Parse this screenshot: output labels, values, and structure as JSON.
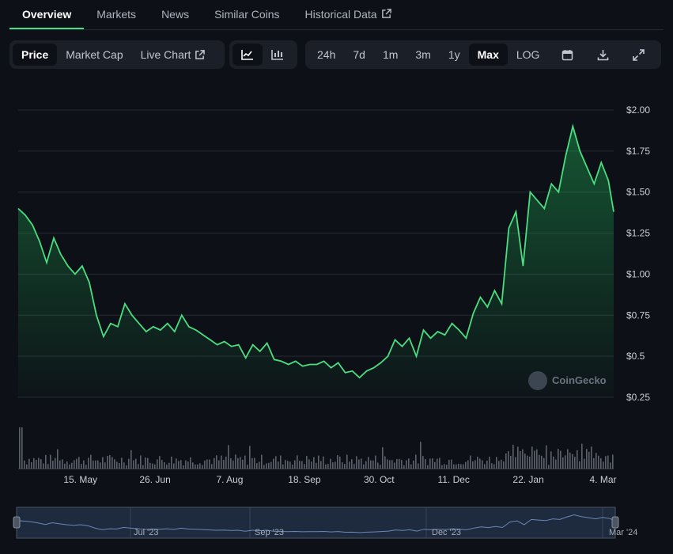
{
  "tabs": [
    {
      "label": "Overview",
      "active": true
    },
    {
      "label": "Markets"
    },
    {
      "label": "News"
    },
    {
      "label": "Similar Coins"
    },
    {
      "label": "Historical Data",
      "external": true
    }
  ],
  "metric_toggle": {
    "price": "Price",
    "market_cap": "Market Cap",
    "live_chart": "Live Chart"
  },
  "chart_style_icons": [
    "line-chart-icon",
    "candlestick-chart-icon"
  ],
  "ranges": [
    "24h",
    "7d",
    "1m",
    "3m",
    "1y",
    "Max",
    "LOG"
  ],
  "active_range": "Max",
  "tool_icons": [
    "calendar-icon",
    "download-icon",
    "fullscreen-icon"
  ],
  "colors": {
    "line": "#4ade80",
    "accent": "#4ade80",
    "background": "#0d1117"
  },
  "watermark": "CoinGecko",
  "chart_data": {
    "type": "area",
    "x_start": "2023-04-10",
    "x_end": "2024-03-10",
    "ylim": [
      0.25,
      2.0
    ],
    "yticks": [
      0.25,
      0.5,
      0.75,
      1.0,
      1.25,
      1.5,
      1.75,
      2.0
    ],
    "ytick_labels": [
      "$0.25",
      "$0.5",
      "$0.75",
      "$1.00",
      "$1.25",
      "$1.50",
      "$1.75",
      "$2.00"
    ],
    "xticks": [
      "2023-05-15",
      "2023-06-26",
      "2023-08-07",
      "2023-09-18",
      "2023-10-30",
      "2023-12-11",
      "2024-01-22",
      "2024-03-04"
    ],
    "xtick_labels": [
      "15. May",
      "26. Jun",
      "7. Aug",
      "18. Sep",
      "30. Oct",
      "11. Dec",
      "22. Jan",
      "4. Mar"
    ],
    "grid": true,
    "series": [
      {
        "x": [
          "2023-04-10",
          "2023-04-14",
          "2023-04-18",
          "2023-04-22",
          "2023-04-26",
          "2023-04-30",
          "2023-05-04",
          "2023-05-08",
          "2023-05-12",
          "2023-05-16",
          "2023-05-20",
          "2023-05-24",
          "2023-05-28",
          "2023-06-01",
          "2023-06-05",
          "2023-06-09",
          "2023-06-13",
          "2023-06-17",
          "2023-06-21",
          "2023-06-25",
          "2023-06-29",
          "2023-07-03",
          "2023-07-07",
          "2023-07-11",
          "2023-07-15",
          "2023-07-19",
          "2023-07-23",
          "2023-07-27",
          "2023-07-31",
          "2023-08-04",
          "2023-08-08",
          "2023-08-12",
          "2023-08-16",
          "2023-08-20",
          "2023-08-24",
          "2023-08-28",
          "2023-09-01",
          "2023-09-05",
          "2023-09-09",
          "2023-09-13",
          "2023-09-17",
          "2023-09-21",
          "2023-09-25",
          "2023-09-29",
          "2023-10-03",
          "2023-10-07",
          "2023-10-11",
          "2023-10-15",
          "2023-10-19",
          "2023-10-23",
          "2023-10-27",
          "2023-10-31",
          "2023-11-04",
          "2023-11-08",
          "2023-11-12",
          "2023-11-16",
          "2023-11-20",
          "2023-11-24",
          "2023-11-28",
          "2023-12-02",
          "2023-12-06",
          "2023-12-10",
          "2023-12-14",
          "2023-12-18",
          "2023-12-22",
          "2023-12-26",
          "2023-12-30",
          "2024-01-03",
          "2024-01-07",
          "2024-01-11",
          "2024-01-15",
          "2024-01-19",
          "2024-01-23",
          "2024-01-27",
          "2024-01-31",
          "2024-02-04",
          "2024-02-08",
          "2024-02-12",
          "2024-02-16",
          "2024-02-20",
          "2024-02-24",
          "2024-02-28",
          "2024-03-03",
          "2024-03-07",
          "2024-03-10"
        ],
        "y": [
          1.4,
          1.36,
          1.3,
          1.2,
          1.07,
          1.22,
          1.12,
          1.05,
          1.0,
          1.05,
          0.95,
          0.75,
          0.62,
          0.7,
          0.68,
          0.82,
          0.75,
          0.7,
          0.65,
          0.68,
          0.66,
          0.7,
          0.65,
          0.75,
          0.68,
          0.66,
          0.63,
          0.6,
          0.57,
          0.59,
          0.56,
          0.57,
          0.49,
          0.57,
          0.53,
          0.58,
          0.48,
          0.47,
          0.45,
          0.47,
          0.44,
          0.45,
          0.45,
          0.47,
          0.43,
          0.46,
          0.4,
          0.41,
          0.37,
          0.41,
          0.43,
          0.46,
          0.5,
          0.6,
          0.56,
          0.61,
          0.5,
          0.66,
          0.61,
          0.65,
          0.63,
          0.7,
          0.66,
          0.61,
          0.76,
          0.86,
          0.8,
          0.9,
          0.82,
          1.28,
          1.38,
          1.05,
          1.5,
          1.45,
          1.4,
          1.55,
          1.5,
          1.72,
          1.9,
          1.75,
          1.65,
          1.55,
          1.68,
          1.57,
          1.38
        ]
      }
    ],
    "navigator_labels": [
      "Jul '23",
      "Sep '23",
      "Dec '23",
      "Mar '24"
    ]
  }
}
